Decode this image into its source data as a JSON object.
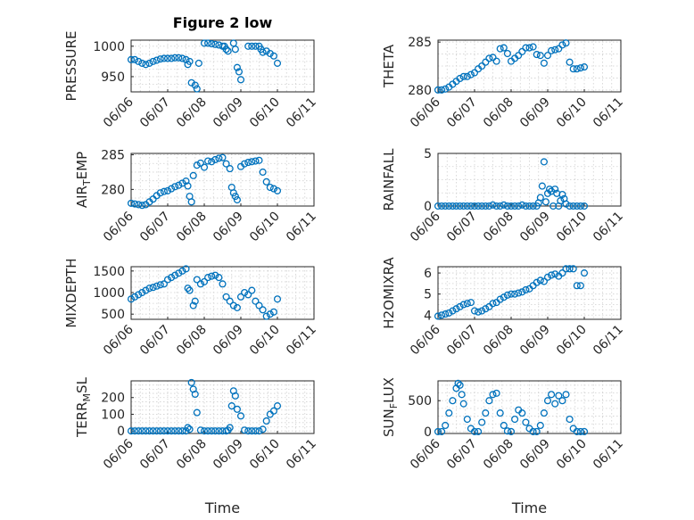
{
  "figure": {
    "title": "Figure 2 low"
  },
  "chart_data": [
    {
      "type": "scatter",
      "title": "Figure 2 low",
      "xlabel": "",
      "ylabel": "PRESSURE",
      "ylim": [
        925,
        1010
      ],
      "yticks": [
        950,
        1000
      ],
      "xlim": [
        "06/06",
        "06/11"
      ],
      "xticks": [
        "06/06",
        "06/07",
        "06/08",
        "06/09",
        "06/10",
        "06/11"
      ],
      "grid": "on",
      "series": [
        {
          "x": [
            0.0,
            0.1,
            0.2,
            0.3,
            0.4,
            0.5,
            0.6,
            0.7,
            0.8,
            0.9,
            1.0,
            1.1,
            1.2,
            1.3,
            1.4,
            1.5,
            1.55,
            1.6,
            1.65,
            1.75,
            1.8,
            1.85,
            2.0,
            2.1,
            2.2,
            2.3,
            2.4,
            2.5,
            2.55,
            2.6,
            2.65,
            2.8,
            2.85,
            2.9,
            2.95,
            3.0,
            3.2,
            3.3,
            3.4,
            3.5,
            3.55,
            3.6,
            3.7,
            3.8,
            3.9,
            4.0
          ],
          "y": [
            978,
            978,
            975,
            972,
            970,
            972,
            975,
            977,
            979,
            980,
            980,
            980,
            981,
            981,
            980,
            978,
            970,
            975,
            940,
            936,
            930,
            972,
            1005,
            1005,
            1004,
            1003,
            1002,
            1000,
            1000,
            995,
            992,
            1005,
            995,
            965,
            958,
            945,
            1000,
            1000,
            1000,
            1000,
            995,
            990,
            992,
            988,
            984,
            972
          ]
        }
      ]
    },
    {
      "type": "scatter",
      "xlabel": "",
      "ylabel": "THETA",
      "ylim": [
        279.8,
        285.2
      ],
      "yticks": [
        280,
        285
      ],
      "xlim": [
        "06/06",
        "06/11"
      ],
      "xticks": [
        "06/06",
        "06/07",
        "06/08",
        "06/09",
        "06/10",
        "06/11"
      ],
      "grid": "on",
      "series": [
        {
          "x": [
            0.0,
            0.1,
            0.2,
            0.3,
            0.4,
            0.5,
            0.6,
            0.7,
            0.8,
            0.9,
            1.0,
            1.1,
            1.2,
            1.3,
            1.4,
            1.5,
            1.6,
            1.7,
            1.8,
            1.9,
            2.0,
            2.1,
            2.2,
            2.3,
            2.4,
            2.5,
            2.6,
            2.7,
            2.8,
            2.9,
            3.0,
            3.1,
            3.2,
            3.3,
            3.4,
            3.5,
            3.6,
            3.7,
            3.8,
            3.9,
            4.0
          ],
          "y": [
            280.0,
            280.0,
            280.1,
            280.3,
            280.6,
            280.9,
            281.2,
            281.4,
            281.4,
            281.6,
            281.8,
            282.2,
            282.5,
            282.9,
            283.3,
            283.4,
            283.0,
            284.3,
            284.4,
            283.8,
            283.0,
            283.3,
            283.6,
            284.0,
            284.4,
            284.4,
            284.5,
            283.7,
            283.6,
            282.8,
            283.6,
            284.1,
            284.2,
            284.3,
            284.7,
            284.9,
            282.9,
            282.2,
            282.2,
            282.3,
            282.4
          ]
        }
      ]
    },
    {
      "type": "scatter",
      "xlabel": "",
      "ylabel": "AIR_TEMP",
      "ylim": [
        277.6,
        285.2
      ],
      "yticks": [
        280,
        285
      ],
      "xlim": [
        "06/06",
        "06/11"
      ],
      "xticks": [
        "06/06",
        "06/07",
        "06/08",
        "06/09",
        "06/10",
        "06/11"
      ],
      "grid": "on",
      "series": [
        {
          "x": [
            0.0,
            0.1,
            0.2,
            0.3,
            0.4,
            0.5,
            0.6,
            0.7,
            0.8,
            0.9,
            1.0,
            1.1,
            1.2,
            1.3,
            1.4,
            1.5,
            1.55,
            1.6,
            1.65,
            1.7,
            1.8,
            1.9,
            2.0,
            2.1,
            2.2,
            2.3,
            2.4,
            2.5,
            2.6,
            2.7,
            2.75,
            2.8,
            2.85,
            2.9,
            3.0,
            3.1,
            3.2,
            3.3,
            3.4,
            3.5,
            3.6,
            3.7,
            3.8,
            3.9,
            4.0
          ],
          "y": [
            278.0,
            277.9,
            277.8,
            277.7,
            277.8,
            278.2,
            278.6,
            279.1,
            279.5,
            279.7,
            279.8,
            280.1,
            280.4,
            280.6,
            280.9,
            281.2,
            280.5,
            279.0,
            278.2,
            282.0,
            283.5,
            283.8,
            283.2,
            284.1,
            284.0,
            284.3,
            284.5,
            284.6,
            283.7,
            283.0,
            280.3,
            279.5,
            279.0,
            278.5,
            283.3,
            283.7,
            283.9,
            284.0,
            284.1,
            284.2,
            282.5,
            281.1,
            280.3,
            280.1,
            279.8
          ]
        }
      ]
    },
    {
      "type": "scatter",
      "xlabel": "",
      "ylabel": "RAINFALL",
      "ylim": [
        0,
        5
      ],
      "yticks": [
        0,
        5
      ],
      "xlim": [
        "06/06",
        "06/11"
      ],
      "xticks": [
        "06/06",
        "06/07",
        "06/08",
        "06/09",
        "06/10",
        "06/11"
      ],
      "grid": "on",
      "series": [
        {
          "x": [
            0.0,
            0.1,
            0.2,
            0.3,
            0.4,
            0.5,
            0.6,
            0.7,
            0.8,
            0.9,
            1.0,
            1.1,
            1.2,
            1.3,
            1.4,
            1.5,
            1.6,
            1.7,
            1.8,
            1.9,
            2.0,
            2.1,
            2.2,
            2.3,
            2.4,
            2.5,
            2.6,
            2.7,
            2.75,
            2.8,
            2.85,
            2.9,
            2.95,
            3.0,
            3.05,
            3.1,
            3.15,
            3.2,
            3.25,
            3.3,
            3.35,
            3.4,
            3.45,
            3.5,
            3.6,
            3.7,
            3.8,
            3.9,
            4.0
          ],
          "y": [
            0,
            0,
            0,
            0,
            0,
            0,
            0,
            0,
            0,
            0,
            0,
            0,
            0,
            0,
            0,
            0.1,
            0,
            0,
            0.1,
            0,
            0,
            0,
            0,
            0.1,
            0,
            0,
            0,
            0,
            0.3,
            0.8,
            1.9,
            4.2,
            0.4,
            1.2,
            1.6,
            1.4,
            0,
            1.6,
            1.2,
            0,
            0.5,
            1.1,
            0.7,
            0.2,
            0,
            0,
            0,
            0,
            0
          ]
        }
      ]
    },
    {
      "type": "scatter",
      "xlabel": "",
      "ylabel": "MIXDEPTH",
      "ylim": [
        380,
        1600
      ],
      "yticks": [
        500,
        1000,
        1500
      ],
      "xlim": [
        "06/06",
        "06/11"
      ],
      "xticks": [
        "06/06",
        "06/07",
        "06/08",
        "06/09",
        "06/10",
        "06/11"
      ],
      "grid": "on",
      "series": [
        {
          "x": [
            0.0,
            0.1,
            0.2,
            0.3,
            0.4,
            0.5,
            0.6,
            0.7,
            0.8,
            0.9,
            1.0,
            1.1,
            1.2,
            1.3,
            1.4,
            1.5,
            1.55,
            1.6,
            1.7,
            1.75,
            1.8,
            1.9,
            2.0,
            2.1,
            2.2,
            2.3,
            2.4,
            2.5,
            2.6,
            2.7,
            2.8,
            2.9,
            3.0,
            3.1,
            3.2,
            3.3,
            3.4,
            3.5,
            3.6,
            3.7,
            3.8,
            3.9,
            4.0
          ],
          "y": [
            850,
            900,
            950,
            1000,
            1050,
            1100,
            1120,
            1150,
            1180,
            1200,
            1300,
            1350,
            1400,
            1450,
            1500,
            1550,
            1100,
            1050,
            700,
            800,
            1300,
            1200,
            1250,
            1350,
            1380,
            1400,
            1350,
            1200,
            900,
            800,
            700,
            650,
            900,
            1000,
            950,
            1050,
            800,
            700,
            600,
            450,
            500,
            550,
            850
          ]
        }
      ]
    },
    {
      "type": "scatter",
      "xlabel": "",
      "ylabel": "H2OMIXRA",
      "ylim": [
        3.8,
        6.3
      ],
      "yticks": [
        4,
        5,
        6
      ],
      "xlim": [
        "06/06",
        "06/11"
      ],
      "xticks": [
        "06/06",
        "06/07",
        "06/08",
        "06/09",
        "06/10",
        "06/11"
      ],
      "grid": "on",
      "series": [
        {
          "x": [
            0.0,
            0.1,
            0.2,
            0.3,
            0.4,
            0.5,
            0.6,
            0.7,
            0.8,
            0.9,
            1.0,
            1.1,
            1.2,
            1.3,
            1.4,
            1.5,
            1.6,
            1.7,
            1.8,
            1.9,
            2.0,
            2.1,
            2.2,
            2.3,
            2.4,
            2.5,
            2.6,
            2.7,
            2.8,
            2.9,
            3.0,
            3.1,
            3.2,
            3.3,
            3.4,
            3.5,
            3.6,
            3.7,
            3.8,
            3.9,
            4.0
          ],
          "y": [
            3.95,
            4.0,
            4.05,
            4.1,
            4.2,
            4.3,
            4.4,
            4.5,
            4.55,
            4.6,
            4.2,
            4.15,
            4.2,
            4.3,
            4.4,
            4.55,
            4.6,
            4.75,
            4.85,
            4.95,
            5.0,
            5.0,
            5.05,
            5.1,
            5.2,
            5.25,
            5.4,
            5.55,
            5.65,
            5.6,
            5.8,
            5.9,
            5.95,
            5.85,
            6.0,
            6.2,
            6.2,
            6.2,
            5.4,
            5.4,
            6.0
          ]
        }
      ]
    },
    {
      "type": "scatter",
      "xlabel": "Time",
      "ylabel": "TERR_MSL",
      "ylim": [
        -15,
        300
      ],
      "yticks": [
        0,
        100,
        200
      ],
      "xlim": [
        "06/06",
        "06/11"
      ],
      "xticks": [
        "06/06",
        "06/07",
        "06/08",
        "06/09",
        "06/10",
        "06/11"
      ],
      "grid": "on",
      "series": [
        {
          "x": [
            0.0,
            0.1,
            0.2,
            0.3,
            0.4,
            0.5,
            0.6,
            0.7,
            0.8,
            0.9,
            1.0,
            1.1,
            1.2,
            1.3,
            1.4,
            1.5,
            1.55,
            1.6,
            1.65,
            1.7,
            1.75,
            1.8,
            1.9,
            2.0,
            2.1,
            2.2,
            2.3,
            2.4,
            2.5,
            2.6,
            2.65,
            2.7,
            2.75,
            2.8,
            2.85,
            2.9,
            3.0,
            3.1,
            3.2,
            3.3,
            3.4,
            3.5,
            3.6,
            3.7,
            3.8,
            3.9,
            4.0
          ],
          "y": [
            0,
            0,
            0,
            0,
            0,
            0,
            0,
            0,
            0,
            0,
            0,
            0,
            0,
            0,
            0,
            0,
            20,
            10,
            290,
            250,
            220,
            110,
            5,
            0,
            0,
            0,
            0,
            0,
            0,
            0,
            5,
            20,
            150,
            240,
            210,
            130,
            90,
            5,
            0,
            0,
            0,
            0,
            10,
            60,
            100,
            120,
            150
          ]
        }
      ]
    },
    {
      "type": "scatter",
      "xlabel": "Time",
      "ylabel": "SUN_FLUX",
      "ylim": [
        -30,
        820
      ],
      "yticks": [
        0,
        500
      ],
      "xlim": [
        "06/06",
        "06/11"
      ],
      "xticks": [
        "06/06",
        "06/07",
        "06/08",
        "06/09",
        "06/10",
        "06/11"
      ],
      "grid": "on",
      "series": [
        {
          "x": [
            0.0,
            0.1,
            0.2,
            0.3,
            0.4,
            0.5,
            0.55,
            0.6,
            0.65,
            0.7,
            0.8,
            0.9,
            1.0,
            1.1,
            1.2,
            1.3,
            1.4,
            1.5,
            1.6,
            1.7,
            1.8,
            1.9,
            2.0,
            2.1,
            2.2,
            2.3,
            2.4,
            2.5,
            2.6,
            2.7,
            2.8,
            2.9,
            3.0,
            3.1,
            3.2,
            3.3,
            3.4,
            3.5,
            3.6,
            3.7,
            3.8,
            3.9,
            4.0
          ],
          "y": [
            0,
            0,
            100,
            300,
            500,
            700,
            780,
            750,
            600,
            450,
            200,
            50,
            0,
            0,
            150,
            300,
            500,
            600,
            620,
            300,
            100,
            10,
            0,
            200,
            350,
            300,
            150,
            50,
            0,
            0,
            100,
            300,
            500,
            600,
            450,
            580,
            500,
            600,
            200,
            50,
            0,
            0,
            0
          ]
        }
      ]
    }
  ]
}
